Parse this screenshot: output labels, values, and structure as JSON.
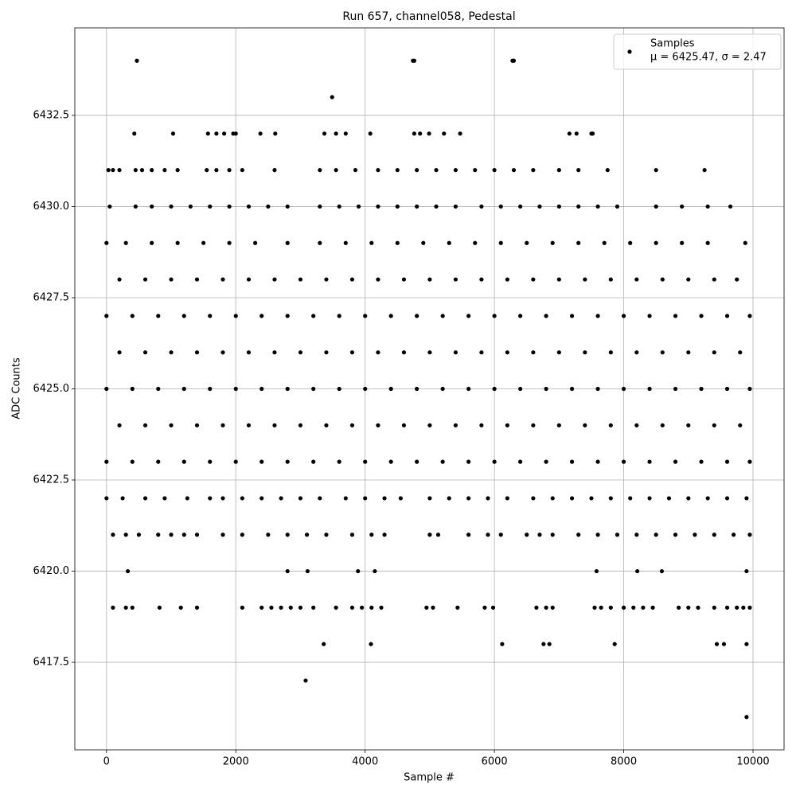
{
  "chart_data": {
    "type": "scatter",
    "title": "Run 657, channel058, Pedestal",
    "xlabel": "Sample #",
    "ylabel": "ADC Counts",
    "xlim": [
      -490,
      10480
    ],
    "ylim": [
      6415.1,
      6434.9
    ],
    "xticks": [
      0,
      2000,
      4000,
      6000,
      8000,
      10000
    ],
    "yticks": [
      6417.5,
      {
        "value": 6420,
        "label": "6420.0"
      },
      6422.5,
      {
        "value": 6425,
        "label": "6425.0"
      },
      6427.5,
      {
        "value": 6430,
        "label": "6430.0"
      },
      6432.5
    ],
    "grid": true,
    "legend": "upper right",
    "legend_note": "μ = 6425.47, σ = 2.47",
    "series": [
      {
        "name": "Samples",
        "color": "#000000",
        "x": [
          470,
          4740,
          4760,
          6280,
          6300,
          3490,
          430,
          1030,
          1570,
          1700,
          1820,
          1960,
          2000,
          2380,
          2610,
          3370,
          3550,
          3700,
          4080,
          4760,
          4850,
          4990,
          5220,
          5470,
          7160,
          7270,
          7500,
          7520,
          30,
          100,
          200,
          450,
          550,
          700,
          900,
          1100,
          1550,
          1700,
          1900,
          2100,
          2600,
          3300,
          3550,
          3850,
          4200,
          4500,
          4800,
          5100,
          5400,
          5700,
          6000,
          6300,
          6600,
          7000,
          7300,
          7750,
          8500,
          9250,
          50,
          450,
          700,
          1000,
          1300,
          1600,
          1900,
          2200,
          2500,
          2800,
          3300,
          3600,
          3900,
          4200,
          4500,
          4800,
          5100,
          5400,
          5800,
          6100,
          6400,
          6700,
          7000,
          7300,
          7600,
          7900,
          8500,
          8900,
          9300,
          9650,
          0,
          300,
          700,
          1100,
          1500,
          1900,
          2300,
          2800,
          3300,
          3700,
          4100,
          4500,
          4900,
          5300,
          5700,
          6100,
          6500,
          6900,
          7300,
          7700,
          8100,
          8500,
          8900,
          9300,
          9880,
          200,
          600,
          1000,
          1400,
          1800,
          2200,
          2600,
          3000,
          3400,
          3800,
          4200,
          4600,
          5000,
          5400,
          5800,
          6200,
          6600,
          7000,
          7400,
          7800,
          8200,
          8600,
          9000,
          9400,
          9750,
          0,
          400,
          800,
          1200,
          1600,
          2000,
          2400,
          2800,
          3200,
          3600,
          4000,
          4400,
          4800,
          5200,
          5600,
          6000,
          6400,
          6800,
          7200,
          7600,
          8000,
          8400,
          8800,
          9200,
          9600,
          9950,
          200,
          600,
          1000,
          1400,
          1800,
          2200,
          2600,
          3000,
          3400,
          3800,
          4200,
          4600,
          5000,
          5400,
          5800,
          6200,
          6600,
          7000,
          7400,
          7800,
          8200,
          8600,
          9000,
          9400,
          9800,
          0,
          400,
          800,
          1200,
          1600,
          2000,
          2400,
          2800,
          3200,
          3600,
          4000,
          4400,
          4800,
          5200,
          5600,
          6000,
          6400,
          6800,
          7200,
          7600,
          8000,
          8400,
          8800,
          9200,
          9600,
          9950,
          200,
          600,
          1000,
          1400,
          1800,
          2200,
          2600,
          3000,
          3400,
          3800,
          4200,
          4600,
          5000,
          5400,
          5800,
          6200,
          6600,
          7000,
          7400,
          7800,
          8200,
          8600,
          9000,
          9400,
          9800,
          0,
          400,
          800,
          1200,
          1600,
          2000,
          2400,
          2800,
          3200,
          3600,
          4000,
          4400,
          4800,
          5200,
          5600,
          6000,
          6400,
          6800,
          7200,
          7600,
          8000,
          8400,
          8800,
          9200,
          9600,
          9950,
          0,
          250,
          600,
          900,
          1250,
          1600,
          1800,
          2100,
          2400,
          2700,
          3000,
          3300,
          3700,
          4000,
          4300,
          4550,
          5000,
          5300,
          5600,
          5900,
          6200,
          6600,
          6900,
          7200,
          7500,
          7800,
          8100,
          8400,
          8700,
          9000,
          9300,
          9600,
          9900,
          100,
          300,
          500,
          800,
          1000,
          1200,
          1400,
          1800,
          2100,
          2500,
          2800,
          3100,
          3400,
          3800,
          4100,
          4300,
          5000,
          5130,
          5600,
          5900,
          6100,
          6500,
          6700,
          6900,
          7300,
          7600,
          7900,
          8200,
          8500,
          8800,
          9100,
          9400,
          9700,
          9950,
          330,
          2800,
          3110,
          3890,
          4150,
          7580,
          8210,
          8590,
          9900,
          100,
          300,
          400,
          820,
          1150,
          1400,
          2100,
          2400,
          2550,
          2700,
          2850,
          3000,
          3200,
          3550,
          3800,
          3950,
          4100,
          4250,
          4950,
          5050,
          5430,
          5850,
          5980,
          6650,
          6800,
          6900,
          7550,
          7650,
          7800,
          8000,
          8150,
          8300,
          8450,
          8850,
          9000,
          9150,
          9400,
          9600,
          9750,
          9850,
          9950,
          3360,
          4090,
          6120,
          6760,
          6850,
          7860,
          9440,
          9550,
          9900,
          3080,
          9900
        ],
        "y": [
          6434,
          6434,
          6434,
          6434,
          6434,
          6433,
          6432,
          6432,
          6432,
          6432,
          6432,
          6432,
          6432,
          6432,
          6432,
          6432,
          6432,
          6432,
          6432,
          6432,
          6432,
          6432,
          6432,
          6432,
          6432,
          6432,
          6432,
          6432,
          6431,
          6431,
          6431,
          6431,
          6431,
          6431,
          6431,
          6431,
          6431,
          6431,
          6431,
          6431,
          6431,
          6431,
          6431,
          6431,
          6431,
          6431,
          6431,
          6431,
          6431,
          6431,
          6431,
          6431,
          6431,
          6431,
          6431,
          6431,
          6431,
          6431,
          6430,
          6430,
          6430,
          6430,
          6430,
          6430,
          6430,
          6430,
          6430,
          6430,
          6430,
          6430,
          6430,
          6430,
          6430,
          6430,
          6430,
          6430,
          6430,
          6430,
          6430,
          6430,
          6430,
          6430,
          6430,
          6430,
          6430,
          6430,
          6430,
          6430,
          6429,
          6429,
          6429,
          6429,
          6429,
          6429,
          6429,
          6429,
          6429,
          6429,
          6429,
          6429,
          6429,
          6429,
          6429,
          6429,
          6429,
          6429,
          6429,
          6429,
          6429,
          6429,
          6429,
          6429,
          6429,
          6428,
          6428,
          6428,
          6428,
          6428,
          6428,
          6428,
          6428,
          6428,
          6428,
          6428,
          6428,
          6428,
          6428,
          6428,
          6428,
          6428,
          6428,
          6428,
          6428,
          6428,
          6428,
          6428,
          6428,
          6428,
          6427,
          6427,
          6427,
          6427,
          6427,
          6427,
          6427,
          6427,
          6427,
          6427,
          6427,
          6427,
          6427,
          6427,
          6427,
          6427,
          6427,
          6427,
          6427,
          6427,
          6427,
          6427,
          6427,
          6427,
          6427,
          6427,
          6426,
          6426,
          6426,
          6426,
          6426,
          6426,
          6426,
          6426,
          6426,
          6426,
          6426,
          6426,
          6426,
          6426,
          6426,
          6426,
          6426,
          6426,
          6426,
          6426,
          6426,
          6426,
          6426,
          6426,
          6426,
          6425,
          6425,
          6425,
          6425,
          6425,
          6425,
          6425,
          6425,
          6425,
          6425,
          6425,
          6425,
          6425,
          6425,
          6425,
          6425,
          6425,
          6425,
          6425,
          6425,
          6425,
          6425,
          6425,
          6425,
          6425,
          6425,
          6424,
          6424,
          6424,
          6424,
          6424,
          6424,
          6424,
          6424,
          6424,
          6424,
          6424,
          6424,
          6424,
          6424,
          6424,
          6424,
          6424,
          6424,
          6424,
          6424,
          6424,
          6424,
          6424,
          6424,
          6424,
          6423,
          6423,
          6423,
          6423,
          6423,
          6423,
          6423,
          6423,
          6423,
          6423,
          6423,
          6423,
          6423,
          6423,
          6423,
          6423,
          6423,
          6423,
          6423,
          6423,
          6423,
          6423,
          6423,
          6423,
          6423,
          6423,
          6422,
          6422,
          6422,
          6422,
          6422,
          6422,
          6422,
          6422,
          6422,
          6422,
          6422,
          6422,
          6422,
          6422,
          6422,
          6422,
          6422,
          6422,
          6422,
          6422,
          6422,
          6422,
          6422,
          6422,
          6422,
          6422,
          6422,
          6422,
          6422,
          6422,
          6422,
          6422,
          6422,
          6421,
          6421,
          6421,
          6421,
          6421,
          6421,
          6421,
          6421,
          6421,
          6421,
          6421,
          6421,
          6421,
          6421,
          6421,
          6421,
          6421,
          6421,
          6421,
          6421,
          6421,
          6421,
          6421,
          6421,
          6421,
          6421,
          6421,
          6421,
          6421,
          6421,
          6421,
          6421,
          6421,
          6421,
          6420,
          6420,
          6420,
          6420,
          6420,
          6420,
          6420,
          6420,
          6420,
          6419,
          6419,
          6419,
          6419,
          6419,
          6419,
          6419,
          6419,
          6419,
          6419,
          6419,
          6419,
          6419,
          6419,
          6419,
          6419,
          6419,
          6419,
          6419,
          6419,
          6419,
          6419,
          6419,
          6419,
          6419,
          6419,
          6419,
          6419,
          6419,
          6419,
          6419,
          6419,
          6419,
          6419,
          6419,
          6419,
          6419,
          6419,
          6419,
          6419,
          6419,
          6418,
          6418,
          6418,
          6418,
          6418,
          6418,
          6418,
          6418,
          6418,
          6417,
          6416
        ]
      }
    ]
  }
}
